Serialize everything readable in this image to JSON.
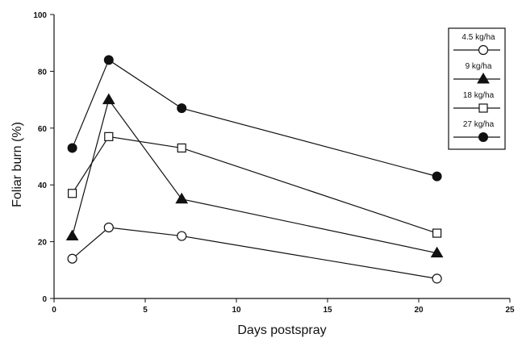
{
  "chart_data": {
    "type": "line",
    "title": "",
    "xlabel": "Days postspray",
    "ylabel": "Foliar burn (%)",
    "xlim": [
      0,
      25
    ],
    "ylim": [
      0,
      100
    ],
    "xticks": [
      0,
      5,
      10,
      15,
      20,
      25
    ],
    "yticks": [
      0,
      20,
      40,
      60,
      80,
      100
    ],
    "grid": false,
    "legend_position": "top-right",
    "x": [
      1,
      3,
      7,
      21
    ],
    "series": [
      {
        "name": "4.5 kg/ha",
        "marker": "open-circle",
        "values": [
          14,
          25,
          22,
          7
        ]
      },
      {
        "name": "9 kg/ha",
        "marker": "filled-triangle",
        "values": [
          22,
          70,
          35,
          16
        ]
      },
      {
        "name": "18 kg/ha",
        "marker": "open-square",
        "values": [
          37,
          57,
          53,
          23
        ]
      },
      {
        "name": "27 kg/ha",
        "marker": "filled-circle",
        "values": [
          53,
          84,
          67,
          43
        ]
      }
    ],
    "colors": {
      "line": "#111111",
      "background": "#ffffff"
    }
  }
}
